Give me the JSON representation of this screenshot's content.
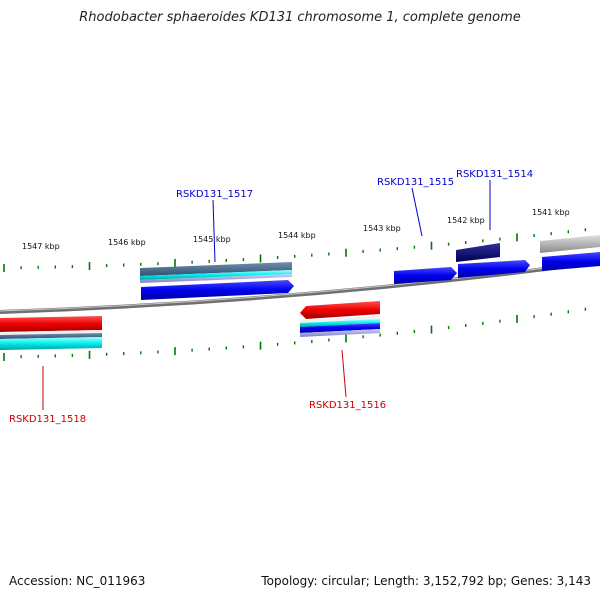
{
  "title": "Rhodobacter sphaeroides KD131 chromosome 1, complete genome",
  "footer": {
    "accession": "Accession: NC_011963",
    "topology": "Topology: circular; Length: 3,152,792 bp; Genes: 3,143"
  },
  "colors": {
    "forward": "#0000ee",
    "reverse": "#ee0000",
    "tick": "#007700",
    "backbone": "#888888",
    "forward_label": "#0000cc",
    "reverse_label": "#cc0000"
  },
  "kbp_labels": [
    "1547 kbp",
    "1546 kbp",
    "1545 kbp",
    "1544 kbp",
    "1543 kbp",
    "1542 kbp",
    "1541 kbp"
  ],
  "gene_labels": {
    "g1517": "RSKD131_1517",
    "g1515": "RSKD131_1515",
    "g1514": "RSKD131_1514",
    "g1518": "RSKD131_1518",
    "g1516": "RSKD131_1516"
  }
}
